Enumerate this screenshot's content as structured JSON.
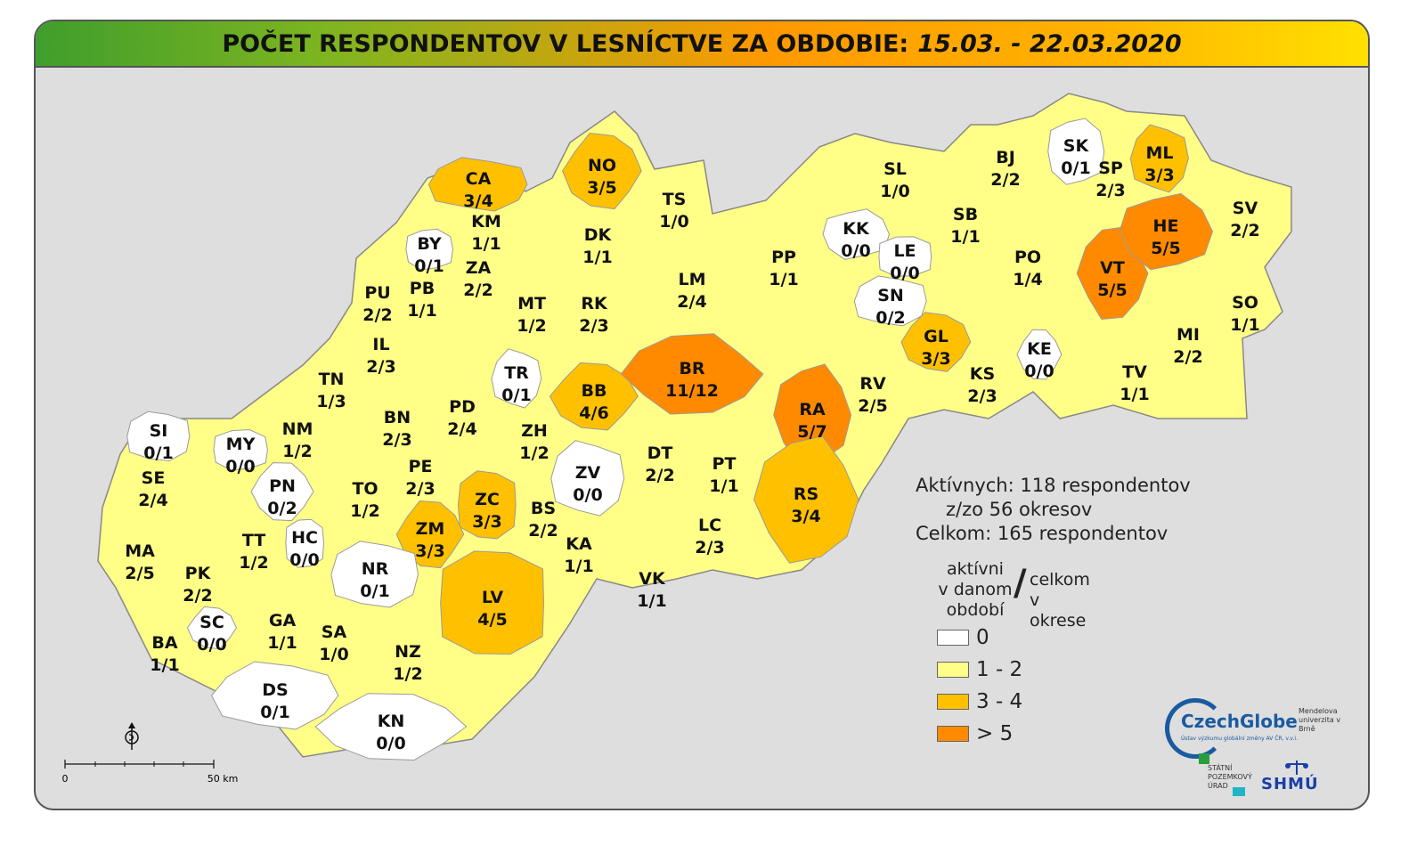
{
  "title": {
    "main": "POČET RESPONDENTOV V LESNÍCTVE ZA OBDOBIE:",
    "period": "15.03. - 22.03.2020"
  },
  "colors": {
    "white": "#ffffff",
    "yellow": "#ffff88",
    "amber": "#ffc000",
    "orange": "#ff8a00",
    "border": "#9a9a9a",
    "background": "#dedede"
  },
  "districts": [
    {
      "code": "CA",
      "value": "3/4",
      "cls": "amber"
    },
    {
      "code": "NO",
      "value": "3/5",
      "cls": "amber"
    },
    {
      "code": "TS",
      "value": "1/0",
      "cls": "yellow"
    },
    {
      "code": "KM",
      "value": "1/1",
      "cls": "yellow"
    },
    {
      "code": "BY",
      "value": "0/1",
      "cls": "white"
    },
    {
      "code": "ZA",
      "value": "2/2",
      "cls": "yellow"
    },
    {
      "code": "DK",
      "value": "1/1",
      "cls": "yellow"
    },
    {
      "code": "PU",
      "value": "2/2",
      "cls": "yellow"
    },
    {
      "code": "PB",
      "value": "1/1",
      "cls": "yellow"
    },
    {
      "code": "MT",
      "value": "1/2",
      "cls": "yellow"
    },
    {
      "code": "RK",
      "value": "2/3",
      "cls": "yellow"
    },
    {
      "code": "LM",
      "value": "2/4",
      "cls": "yellow"
    },
    {
      "code": "PP",
      "value": "1/1",
      "cls": "yellow"
    },
    {
      "code": "IL",
      "value": "2/3",
      "cls": "yellow"
    },
    {
      "code": "TN",
      "value": "1/3",
      "cls": "yellow"
    },
    {
      "code": "BN",
      "value": "2/3",
      "cls": "yellow"
    },
    {
      "code": "PD",
      "value": "2/4",
      "cls": "yellow"
    },
    {
      "code": "TR",
      "value": "0/1",
      "cls": "white"
    },
    {
      "code": "BB",
      "value": "4/6",
      "cls": "amber"
    },
    {
      "code": "BR",
      "value": "11/12",
      "cls": "orange"
    },
    {
      "code": "NM",
      "value": "1/2",
      "cls": "yellow"
    },
    {
      "code": "MY",
      "value": "0/0",
      "cls": "white"
    },
    {
      "code": "SI",
      "value": "0/1",
      "cls": "white"
    },
    {
      "code": "SE",
      "value": "2/4",
      "cls": "yellow"
    },
    {
      "code": "PN",
      "value": "0/2",
      "cls": "white"
    },
    {
      "code": "TO",
      "value": "1/2",
      "cls": "yellow"
    },
    {
      "code": "PE",
      "value": "2/3",
      "cls": "yellow"
    },
    {
      "code": "ZH",
      "value": "1/2",
      "cls": "yellow"
    },
    {
      "code": "ZV",
      "value": "0/0",
      "cls": "white"
    },
    {
      "code": "DT",
      "value": "2/2",
      "cls": "yellow"
    },
    {
      "code": "PT",
      "value": "1/1",
      "cls": "yellow"
    },
    {
      "code": "RA",
      "value": "5/7",
      "cls": "orange"
    },
    {
      "code": "RV",
      "value": "2/5",
      "cls": "yellow"
    },
    {
      "code": "ZC",
      "value": "3/3",
      "cls": "amber"
    },
    {
      "code": "BS",
      "value": "2/2",
      "cls": "yellow"
    },
    {
      "code": "ZM",
      "value": "3/3",
      "cls": "amber"
    },
    {
      "code": "MA",
      "value": "2/5",
      "cls": "yellow"
    },
    {
      "code": "TT",
      "value": "1/2",
      "cls": "yellow"
    },
    {
      "code": "HC",
      "value": "0/0",
      "cls": "white"
    },
    {
      "code": "NR",
      "value": "0/1",
      "cls": "white"
    },
    {
      "code": "KA",
      "value": "1/1",
      "cls": "yellow"
    },
    {
      "code": "LC",
      "value": "2/3",
      "cls": "yellow"
    },
    {
      "code": "RS",
      "value": "3/4",
      "cls": "amber"
    },
    {
      "code": "PK",
      "value": "2/2",
      "cls": "yellow"
    },
    {
      "code": "LV",
      "value": "4/5",
      "cls": "amber"
    },
    {
      "code": "VK",
      "value": "1/1",
      "cls": "yellow"
    },
    {
      "code": "SC",
      "value": "0/0",
      "cls": "white"
    },
    {
      "code": "GA",
      "value": "1/1",
      "cls": "yellow"
    },
    {
      "code": "SA",
      "value": "1/0",
      "cls": "yellow"
    },
    {
      "code": "BA",
      "value": "1/1",
      "cls": "yellow"
    },
    {
      "code": "NZ",
      "value": "1/2",
      "cls": "yellow"
    },
    {
      "code": "DS",
      "value": "0/1",
      "cls": "white"
    },
    {
      "code": "KN",
      "value": "0/0",
      "cls": "white"
    },
    {
      "code": "SL",
      "value": "1/0",
      "cls": "yellow"
    },
    {
      "code": "KK",
      "value": "0/0",
      "cls": "white"
    },
    {
      "code": "LE",
      "value": "0/0",
      "cls": "white"
    },
    {
      "code": "SN",
      "value": "0/2",
      "cls": "white"
    },
    {
      "code": "GL",
      "value": "3/3",
      "cls": "amber"
    },
    {
      "code": "SB",
      "value": "1/1",
      "cls": "yellow"
    },
    {
      "code": "BJ",
      "value": "2/2",
      "cls": "yellow"
    },
    {
      "code": "SK",
      "value": "0/1",
      "cls": "white"
    },
    {
      "code": "SP",
      "value": "2/3",
      "cls": "yellow"
    },
    {
      "code": "ML",
      "value": "3/3",
      "cls": "amber"
    },
    {
      "code": "PO",
      "value": "1/4",
      "cls": "yellow"
    },
    {
      "code": "VT",
      "value": "5/5",
      "cls": "orange"
    },
    {
      "code": "HE",
      "value": "5/5",
      "cls": "orange"
    },
    {
      "code": "SV",
      "value": "2/2",
      "cls": "yellow"
    },
    {
      "code": "SO",
      "value": "1/1",
      "cls": "yellow"
    },
    {
      "code": "MI",
      "value": "2/2",
      "cls": "yellow"
    },
    {
      "code": "KE",
      "value": "0/0",
      "cls": "white"
    },
    {
      "code": "KS",
      "value": "2/3",
      "cls": "yellow"
    },
    {
      "code": "TV",
      "value": "1/1",
      "cls": "yellow"
    }
  ],
  "stats": {
    "active": "Aktívnych: 118 respondentov",
    "districts": "z/zo 56 okresov",
    "total": "Celkom: 165 respondentov"
  },
  "legend": {
    "left_l1": "aktívni",
    "left_l2": "v danom",
    "left_l3": "období",
    "slash": "/",
    "right_l1": "celkom",
    "right_l2": "v okrese",
    "items": [
      {
        "label": "0",
        "color": "#ffffff"
      },
      {
        "label": "1 - 2",
        "color": "#ffff88"
      },
      {
        "label": "3 - 4",
        "color": "#ffc000"
      },
      {
        "label": "> 5",
        "color": "#ff8a00"
      }
    ]
  },
  "scale": {
    "start": "0",
    "end": "50 km"
  },
  "logos": {
    "czechglobe": "CzechGlobe",
    "czechglobe_sub": "Ústav výzkumu globální změny AV ČR, v.v.i.",
    "mendel": "Mendelova univerzita v Brně",
    "spu_l1": "STÁTNÍ",
    "spu_l2": "POZEMKOVÝ",
    "spu_l3": "ÚRAD",
    "shmu": "SHMÚ"
  },
  "north_arrow": "compass-icon"
}
